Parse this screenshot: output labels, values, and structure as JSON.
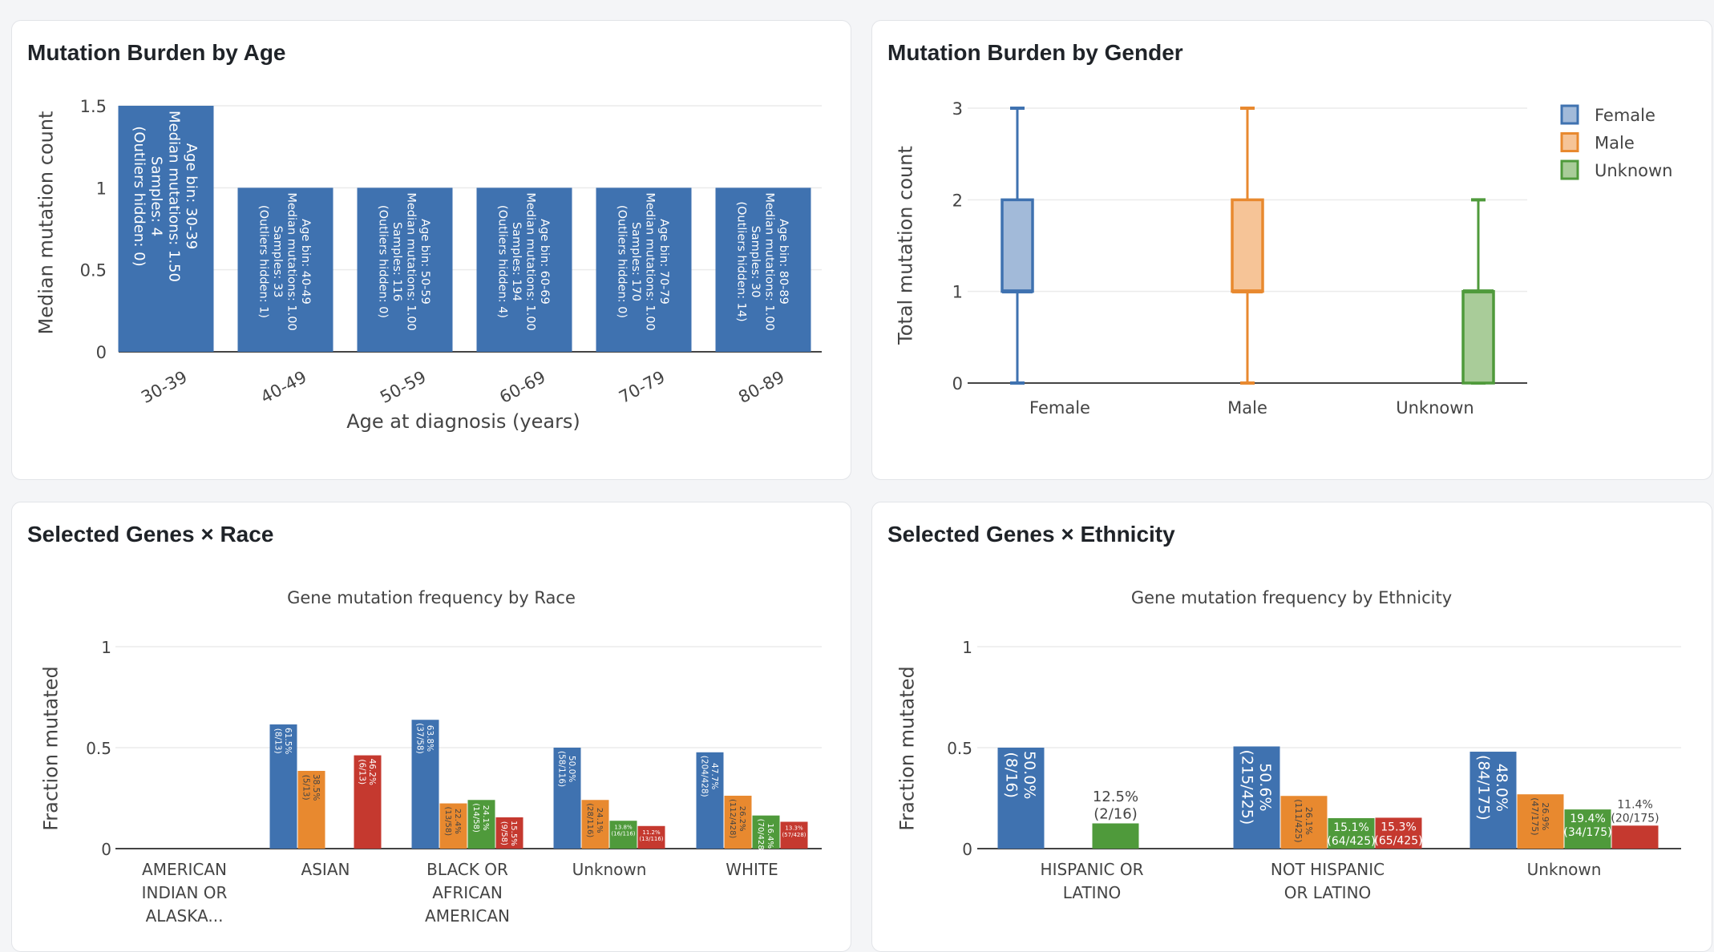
{
  "colors": {
    "blue": "#3f72b0",
    "orange": "#e8892f",
    "green": "#4f9a3b",
    "red": "#c5392f",
    "blue_fill": "#a2bad9",
    "orange_fill": "#f6c497",
    "green_fill": "#a9cc99"
  },
  "panels": {
    "age": {
      "title": "Mutation Burden by Age"
    },
    "gender": {
      "title": "Mutation Burden by Gender"
    },
    "race": {
      "title": "Selected Genes × Race"
    },
    "ethnicity": {
      "title": "Selected Genes × Ethnicity"
    }
  },
  "chart_data": [
    {
      "id": "age",
      "type": "bar",
      "xlabel": "Age at diagnosis (years)",
      "ylabel": "Median mutation count",
      "ylim": [
        0,
        1.5
      ],
      "yticks": [
        0,
        0.5,
        1,
        1.5
      ],
      "ytick_labels": [
        "0",
        "0.5",
        "1",
        "1.5"
      ],
      "grid": true,
      "categories": [
        "30-39",
        "40-49",
        "50-59",
        "60-69",
        "70-79",
        "80-89"
      ],
      "values": [
        1.5,
        1,
        1,
        1,
        1,
        1
      ],
      "samples": [
        4,
        33,
        116,
        194,
        170,
        30
      ],
      "outliers_hidden": [
        0,
        1,
        0,
        4,
        0,
        14
      ],
      "bar_labels": [
        [
          "Age bin: 30-39",
          "Median mutations: 1.50",
          "Samples: 4",
          "(Outliers hidden: 0)"
        ],
        [
          "Age bin: 40-49",
          "Median mutations: 1.00",
          "Samples: 33",
          "(Outliers hidden: 1)"
        ],
        [
          "Age bin: 50-59",
          "Median mutations: 1.00",
          "Samples: 116",
          "(Outliers hidden: 0)"
        ],
        [
          "Age bin: 60-69",
          "Median mutations: 1.00",
          "Samples: 194",
          "(Outliers hidden: 4)"
        ],
        [
          "Age bin: 70-79",
          "Median mutations: 1.00",
          "Samples: 170",
          "(Outliers hidden: 0)"
        ],
        [
          "Age bin: 80-89",
          "Median mutations: 1.00",
          "Samples: 30",
          "(Outliers hidden: 14)"
        ]
      ]
    },
    {
      "id": "gender",
      "type": "box",
      "ylabel": "Total mutation count",
      "ylim": [
        0,
        3
      ],
      "yticks": [
        0,
        1,
        2,
        3
      ],
      "grid": true,
      "categories": [
        "Female",
        "Male",
        "Unknown"
      ],
      "legend": {
        "placement": "top-right",
        "entries": [
          "Female",
          "Male",
          "Unknown"
        ]
      },
      "series": [
        {
          "name": "Female",
          "min": 0,
          "q1": 1,
          "median": 1,
          "q3": 2,
          "max": 3
        },
        {
          "name": "Male",
          "min": 0,
          "q1": 1,
          "median": 1,
          "q3": 2,
          "max": 3
        },
        {
          "name": "Unknown",
          "min": 0,
          "q1": 0,
          "median": 1,
          "q3": 1,
          "max": 2
        }
      ]
    },
    {
      "id": "race",
      "type": "bar",
      "title": "Gene mutation frequency by Race",
      "ylabel": "Fraction mutated",
      "ylim": [
        0,
        1
      ],
      "yticks": [
        0,
        0.5,
        1
      ],
      "ytick_labels": [
        "0",
        "0.5",
        "1"
      ],
      "grid": true,
      "categories": [
        [
          "AMERICAN",
          "INDIAN OR",
          "ALASKA..."
        ],
        [
          "ASIAN"
        ],
        [
          "BLACK OR",
          "AFRICAN",
          "AMERICAN"
        ],
        [
          "Unknown"
        ],
        [
          "WHITE"
        ]
      ],
      "series": [
        {
          "color": "blue",
          "values": [
            null,
            0.615,
            0.638,
            0.5,
            0.477
          ],
          "labels": [
            null,
            [
              "61.5%",
              "(8/13)"
            ],
            [
              "63.8%",
              "(37/58)"
            ],
            [
              "50.0%",
              "(58/116)"
            ],
            [
              "47.7%",
              "(204/428)"
            ]
          ]
        },
        {
          "color": "orange",
          "values": [
            null,
            0.385,
            0.224,
            0.241,
            0.262
          ],
          "labels": [
            null,
            [
              "38.5%",
              "(5/13)"
            ],
            [
              "22.4%",
              "(13/58)"
            ],
            [
              "24.1%",
              "(28/116)"
            ],
            [
              "26.2%",
              "(112/428)"
            ]
          ]
        },
        {
          "color": "green",
          "values": [
            null,
            null,
            0.241,
            0.138,
            0.164
          ],
          "labels": [
            null,
            null,
            [
              "24.1%",
              "(14/58)"
            ],
            [
              "13.8%",
              "(16/116)"
            ],
            [
              "16.4%",
              "(70/428)"
            ]
          ]
        },
        {
          "color": "red",
          "values": [
            null,
            0.462,
            0.155,
            0.112,
            0.133
          ],
          "labels": [
            null,
            [
              "46.2%",
              "(6/13)"
            ],
            [
              "15.5%",
              "(9/58)"
            ],
            [
              "11.2%",
              "(13/116)"
            ],
            [
              "13.3%",
              "(57/428)"
            ]
          ]
        }
      ]
    },
    {
      "id": "ethnicity",
      "type": "bar",
      "title": "Gene mutation frequency by Ethnicity",
      "ylabel": "Fraction mutated",
      "ylim": [
        0,
        1
      ],
      "yticks": [
        0,
        0.5,
        1
      ],
      "ytick_labels": [
        "0",
        "0.5",
        "1"
      ],
      "grid": true,
      "categories": [
        [
          "HISPANIC OR",
          "LATINO"
        ],
        [
          "NOT HISPANIC",
          "OR LATINO"
        ],
        [
          "Unknown"
        ]
      ],
      "series": [
        {
          "color": "blue",
          "values": [
            0.5,
            0.506,
            0.48
          ],
          "labels": [
            [
              "50.0%",
              "(8/16)"
            ],
            [
              "50.6%",
              "(215/425)"
            ],
            [
              "48.0%",
              "(84/175)"
            ]
          ]
        },
        {
          "color": "orange",
          "values": [
            null,
            0.261,
            0.269
          ],
          "labels": [
            null,
            [
              "26.1%",
              "(111/425)"
            ],
            [
              "26.9%",
              "(47/175)"
            ]
          ]
        },
        {
          "color": "green",
          "values": [
            0.125,
            0.151,
            0.194
          ],
          "labels": [
            [
              "12.5%",
              "(2/16)"
            ],
            [
              "15.1%",
              "(64/425)"
            ],
            [
              "19.4%",
              "(34/175)"
            ]
          ]
        },
        {
          "color": "red",
          "values": [
            null,
            0.153,
            0.114
          ],
          "labels": [
            null,
            [
              "15.3%",
              "(65/425)"
            ],
            [
              "11.4%",
              "(20/175)"
            ]
          ]
        }
      ]
    }
  ]
}
